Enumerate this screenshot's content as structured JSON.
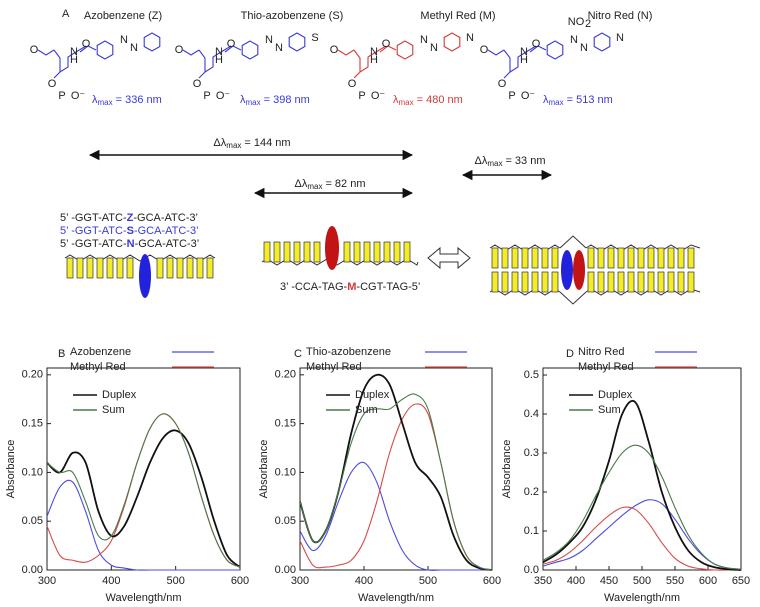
{
  "diagram": {
    "panel": "A",
    "compounds": [
      {
        "name": "Azobenzene (Z)",
        "color": "#3a3ad6",
        "atoms": [
          "O",
          "N",
          "H",
          "O",
          "O",
          "P",
          "O⁻",
          "N",
          "N"
        ],
        "lambda": {
          "symbol": "λ",
          "sub": "max",
          "text": "= 336 nm"
        }
      },
      {
        "name": "Thio-azobenzene (S)",
        "color": "#3a3ad6",
        "atoms": [
          "O",
          "N",
          "H",
          "O",
          "O",
          "P",
          "O⁻",
          "N",
          "N",
          "S"
        ],
        "lambda": {
          "symbol": "λ",
          "sub": "max",
          "text": "= 398 nm"
        }
      },
      {
        "name": "Methyl Red (M)",
        "color": "#d23a3a",
        "atoms": [
          "O",
          "N",
          "H",
          "O",
          "O",
          "P",
          "O⁻",
          "N",
          "N",
          "N"
        ],
        "lambda": {
          "symbol": "λ",
          "sub": "max",
          "text": "= 480 nm"
        }
      },
      {
        "name": "Nitro Red (N)",
        "color": "#3a3ad6",
        "atoms": [
          "O",
          "N",
          "H",
          "O",
          "O",
          "P",
          "O⁻",
          "N",
          "N",
          "N",
          "NO",
          "2"
        ],
        "lambda": {
          "symbol": "λ",
          "sub": "max",
          "text": "= 513 nm"
        }
      }
    ],
    "shifts": [
      {
        "symbol": "Δλ",
        "sub": "max",
        "text": "= 144 nm"
      },
      {
        "symbol": "Δλ",
        "sub": "max",
        "text": "= 82 nm"
      },
      {
        "symbol": "Δλ",
        "sub": "max",
        "text": "= 33 nm"
      }
    ],
    "sequences": [
      [
        "5’ -GGT-ATC-",
        "Z",
        "-GCA-ATC-3’"
      ],
      [
        "5’ -GGT-ATC-",
        "S",
        "-GCA-ATC-3’"
      ],
      [
        "5’ -GGT-ATC-",
        "N",
        "-GCA-ATC-3’"
      ]
    ],
    "complement": [
      "3’ -CCA-TAG-",
      "M",
      "-CGT-TAG-5’"
    ]
  },
  "chart_data": [
    {
      "type": "line",
      "panel": "B",
      "xlabel": "Wavelength/nm",
      "ylabel": "Absorbance",
      "xlim": [
        300,
        600
      ],
      "ylim": [
        0,
        0.207
      ],
      "xticks": [
        300,
        400,
        500,
        600
      ],
      "yticks": [
        {
          "value": 0,
          "label": "0.00"
        },
        {
          "value": 0.05,
          "label": "0.05"
        },
        {
          "value": 0.1,
          "label": "0.10"
        },
        {
          "value": 0.15,
          "label": "0.15"
        },
        {
          "value": 0.2,
          "label": "0.20"
        }
      ],
      "x": [
        300,
        320,
        340,
        360,
        380,
        400,
        420,
        440,
        460,
        480,
        500,
        520,
        540,
        560,
        580,
        600
      ],
      "series": [
        {
          "name": "Azobenzene",
          "color": "#4b4be0",
          "values": [
            0.055,
            0.085,
            0.09,
            0.06,
            0.02,
            0.005,
            0.002,
            0,
            0,
            0,
            0,
            0,
            0,
            0,
            0,
            0
          ]
        },
        {
          "name": "Methyl Red",
          "color": "#d84a4a",
          "values": [
            0.045,
            0.015,
            0.01,
            0.008,
            0.015,
            0.03,
            0.065,
            0.11,
            0.145,
            0.16,
            0.15,
            0.12,
            0.075,
            0.035,
            0.01,
            0.003
          ]
        },
        {
          "name": "Duplex",
          "color": "#111111",
          "values": [
            0.11,
            0.1,
            0.12,
            0.11,
            0.06,
            0.035,
            0.045,
            0.075,
            0.11,
            0.135,
            0.143,
            0.13,
            0.095,
            0.05,
            0.015,
            0.003
          ]
        },
        {
          "name": "Sum",
          "color": "#4a7a4a",
          "values": [
            0.11,
            0.1,
            0.1,
            0.07,
            0.035,
            0.035,
            0.067,
            0.11,
            0.145,
            0.16,
            0.15,
            0.12,
            0.075,
            0.035,
            0.01,
            0.003
          ]
        }
      ]
    },
    {
      "type": "line",
      "panel": "C",
      "xlabel": "Wavelength/nm",
      "ylabel": "Absorbance",
      "xlim": [
        300,
        600
      ],
      "ylim": [
        0,
        0.207
      ],
      "xticks": [
        300,
        400,
        500,
        600
      ],
      "yticks": [
        {
          "value": 0,
          "label": "0.00"
        },
        {
          "value": 0.05,
          "label": "0.05"
        },
        {
          "value": 0.1,
          "label": "0.10"
        },
        {
          "value": 0.15,
          "label": "0.15"
        },
        {
          "value": 0.2,
          "label": "0.20"
        }
      ],
      "x": [
        300,
        320,
        340,
        360,
        380,
        400,
        420,
        440,
        460,
        480,
        500,
        520,
        540,
        560,
        580,
        600
      ],
      "series": [
        {
          "name": "Thio-azobenzene",
          "color": "#4b4be0",
          "values": [
            0.04,
            0.02,
            0.035,
            0.07,
            0.1,
            0.11,
            0.09,
            0.05,
            0.02,
            0.005,
            0,
            0,
            0,
            0,
            0,
            0
          ]
        },
        {
          "name": "Methyl Red",
          "color": "#d84a4a",
          "values": [
            0.03,
            0.005,
            0.003,
            0.005,
            0.01,
            0.03,
            0.07,
            0.12,
            0.155,
            0.17,
            0.16,
            0.11,
            0.05,
            0.015,
            0.003,
            0
          ]
        },
        {
          "name": "Duplex",
          "color": "#111111",
          "values": [
            0.07,
            0.03,
            0.04,
            0.08,
            0.14,
            0.185,
            0.2,
            0.19,
            0.15,
            0.11,
            0.095,
            0.075,
            0.035,
            0.01,
            0.002,
            0
          ]
        },
        {
          "name": "Sum",
          "color": "#4a7a4a",
          "values": [
            0.07,
            0.03,
            0.04,
            0.08,
            0.13,
            0.16,
            0.165,
            0.165,
            0.175,
            0.18,
            0.165,
            0.11,
            0.05,
            0.015,
            0.003,
            0
          ]
        }
      ]
    },
    {
      "type": "line",
      "panel": "D",
      "xlabel": "Wavelength/nm",
      "ylabel": "Absorbance",
      "xlim": [
        350,
        650
      ],
      "ylim": [
        0,
        0.518
      ],
      "xticks": [
        350,
        400,
        450,
        500,
        550,
        600,
        650
      ],
      "yticks": [
        {
          "value": 0,
          "label": "0.0"
        },
        {
          "value": 0.1,
          "label": "0.1"
        },
        {
          "value": 0.2,
          "label": "0.2"
        },
        {
          "value": 0.3,
          "label": "0.3"
        },
        {
          "value": 0.4,
          "label": "0.4"
        },
        {
          "value": 0.5,
          "label": "0.5"
        }
      ],
      "x": [
        350,
        370,
        390,
        410,
        430,
        450,
        470,
        490,
        510,
        530,
        550,
        570,
        590,
        610,
        630,
        650
      ],
      "series": [
        {
          "name": "Nitro Red",
          "color": "#4b4be0",
          "values": [
            0.01,
            0.02,
            0.03,
            0.05,
            0.08,
            0.11,
            0.14,
            0.165,
            0.18,
            0.17,
            0.13,
            0.08,
            0.04,
            0.015,
            0.005,
            0.002
          ]
        },
        {
          "name": "Methyl Red",
          "color": "#d84a4a",
          "values": [
            0.015,
            0.025,
            0.045,
            0.075,
            0.11,
            0.14,
            0.16,
            0.155,
            0.12,
            0.07,
            0.03,
            0.01,
            0.003,
            0,
            0,
            0
          ]
        },
        {
          "name": "Duplex",
          "color": "#111111",
          "values": [
            0.02,
            0.04,
            0.07,
            0.11,
            0.18,
            0.28,
            0.4,
            0.43,
            0.33,
            0.2,
            0.11,
            0.05,
            0.02,
            0.007,
            0.002,
            0
          ]
        },
        {
          "name": "Sum",
          "color": "#4a7a4a",
          "values": [
            0.025,
            0.045,
            0.075,
            0.125,
            0.19,
            0.25,
            0.3,
            0.32,
            0.3,
            0.24,
            0.16,
            0.09,
            0.043,
            0.015,
            0.005,
            0.002
          ]
        }
      ]
    }
  ]
}
